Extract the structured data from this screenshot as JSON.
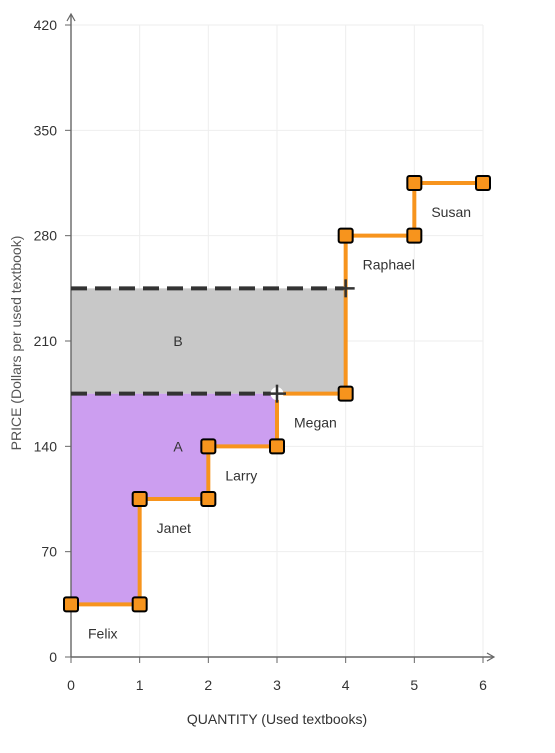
{
  "chart_data": {
    "type": "line",
    "xlabel": "QUANTITY (Used textbooks)",
    "ylabel": "PRICE (Dollars per used textbook)",
    "xlim": [
      0,
      6
    ],
    "ylim": [
      0,
      420
    ],
    "x_ticks": [
      0,
      1,
      2,
      3,
      4,
      5,
      6
    ],
    "y_ticks": [
      0,
      70,
      140,
      210,
      280,
      350,
      420
    ],
    "grid": true,
    "colors": {
      "supply_line": "#f7941d",
      "marker_fill": "#f7941d",
      "marker_edge": "#000000",
      "area_a": "#cc9ef0",
      "area_b": "#c8c8c8",
      "price_line": "#333333",
      "grid": "#eeeeee"
    },
    "supply_curve": [
      [
        0,
        35
      ],
      [
        1,
        35
      ],
      [
        1,
        105
      ],
      [
        2,
        105
      ],
      [
        2,
        140
      ],
      [
        3,
        140
      ],
      [
        3,
        175
      ],
      [
        4,
        175
      ],
      [
        4,
        280
      ],
      [
        5,
        280
      ],
      [
        5,
        315
      ],
      [
        6,
        315
      ]
    ],
    "markers": [
      [
        0,
        35
      ],
      [
        1,
        35
      ],
      [
        1,
        105
      ],
      [
        2,
        105
      ],
      [
        2,
        140
      ],
      [
        3,
        140
      ],
      [
        4,
        175
      ],
      [
        4,
        280
      ],
      [
        5,
        280
      ],
      [
        5,
        315
      ],
      [
        6,
        315
      ]
    ],
    "sellers": [
      {
        "name": "Felix",
        "x": 0,
        "y": 35,
        "anchor": "below-right"
      },
      {
        "name": "Janet",
        "x": 1,
        "y": 105,
        "anchor": "below-right"
      },
      {
        "name": "Larry",
        "x": 2,
        "y": 140,
        "anchor": "below-right"
      },
      {
        "name": "Megan",
        "x": 3,
        "y": 175,
        "anchor": "below-right"
      },
      {
        "name": "Raphael",
        "x": 4,
        "y": 280,
        "anchor": "below-right"
      },
      {
        "name": "Susan",
        "x": 5,
        "y": 315,
        "anchor": "below-right"
      }
    ],
    "price_lines": [
      {
        "y": 245,
        "x_to": 4
      },
      {
        "y": 175,
        "x_to": 3
      }
    ],
    "crosshairs": [
      {
        "x": 4,
        "y": 245
      },
      {
        "x": 3,
        "y": 175
      }
    ],
    "areas": [
      {
        "label": "B",
        "label_at": [
          1.5,
          210
        ]
      },
      {
        "label": "A",
        "label_at": [
          1.5,
          140
        ]
      }
    ]
  }
}
